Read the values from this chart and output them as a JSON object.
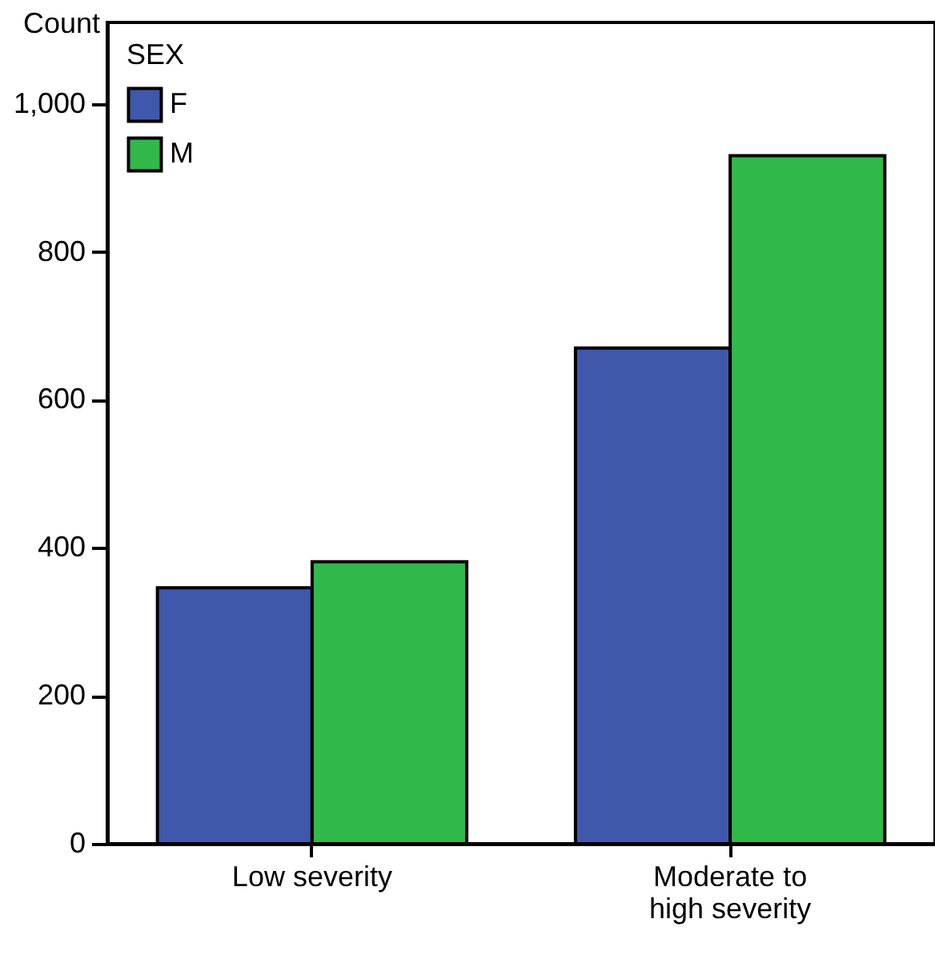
{
  "chart_data": {
    "type": "bar",
    "ylabel": "Count",
    "legend_title": "SEX",
    "legend": "top left",
    "grid": false,
    "categories": [
      "Low severity",
      "Moderate to high severity"
    ],
    "series": [
      {
        "name": "F",
        "color": "#3f58ab",
        "values": [
          346,
          670
        ]
      },
      {
        "name": "M",
        "color": "#31b84a",
        "values": [
          381,
          930
        ]
      }
    ],
    "ylim": [
      0,
      1110
    ],
    "yticks": [
      0,
      200,
      400,
      600,
      800,
      {
        "value": 1000,
        "label": "1,000"
      }
    ]
  }
}
